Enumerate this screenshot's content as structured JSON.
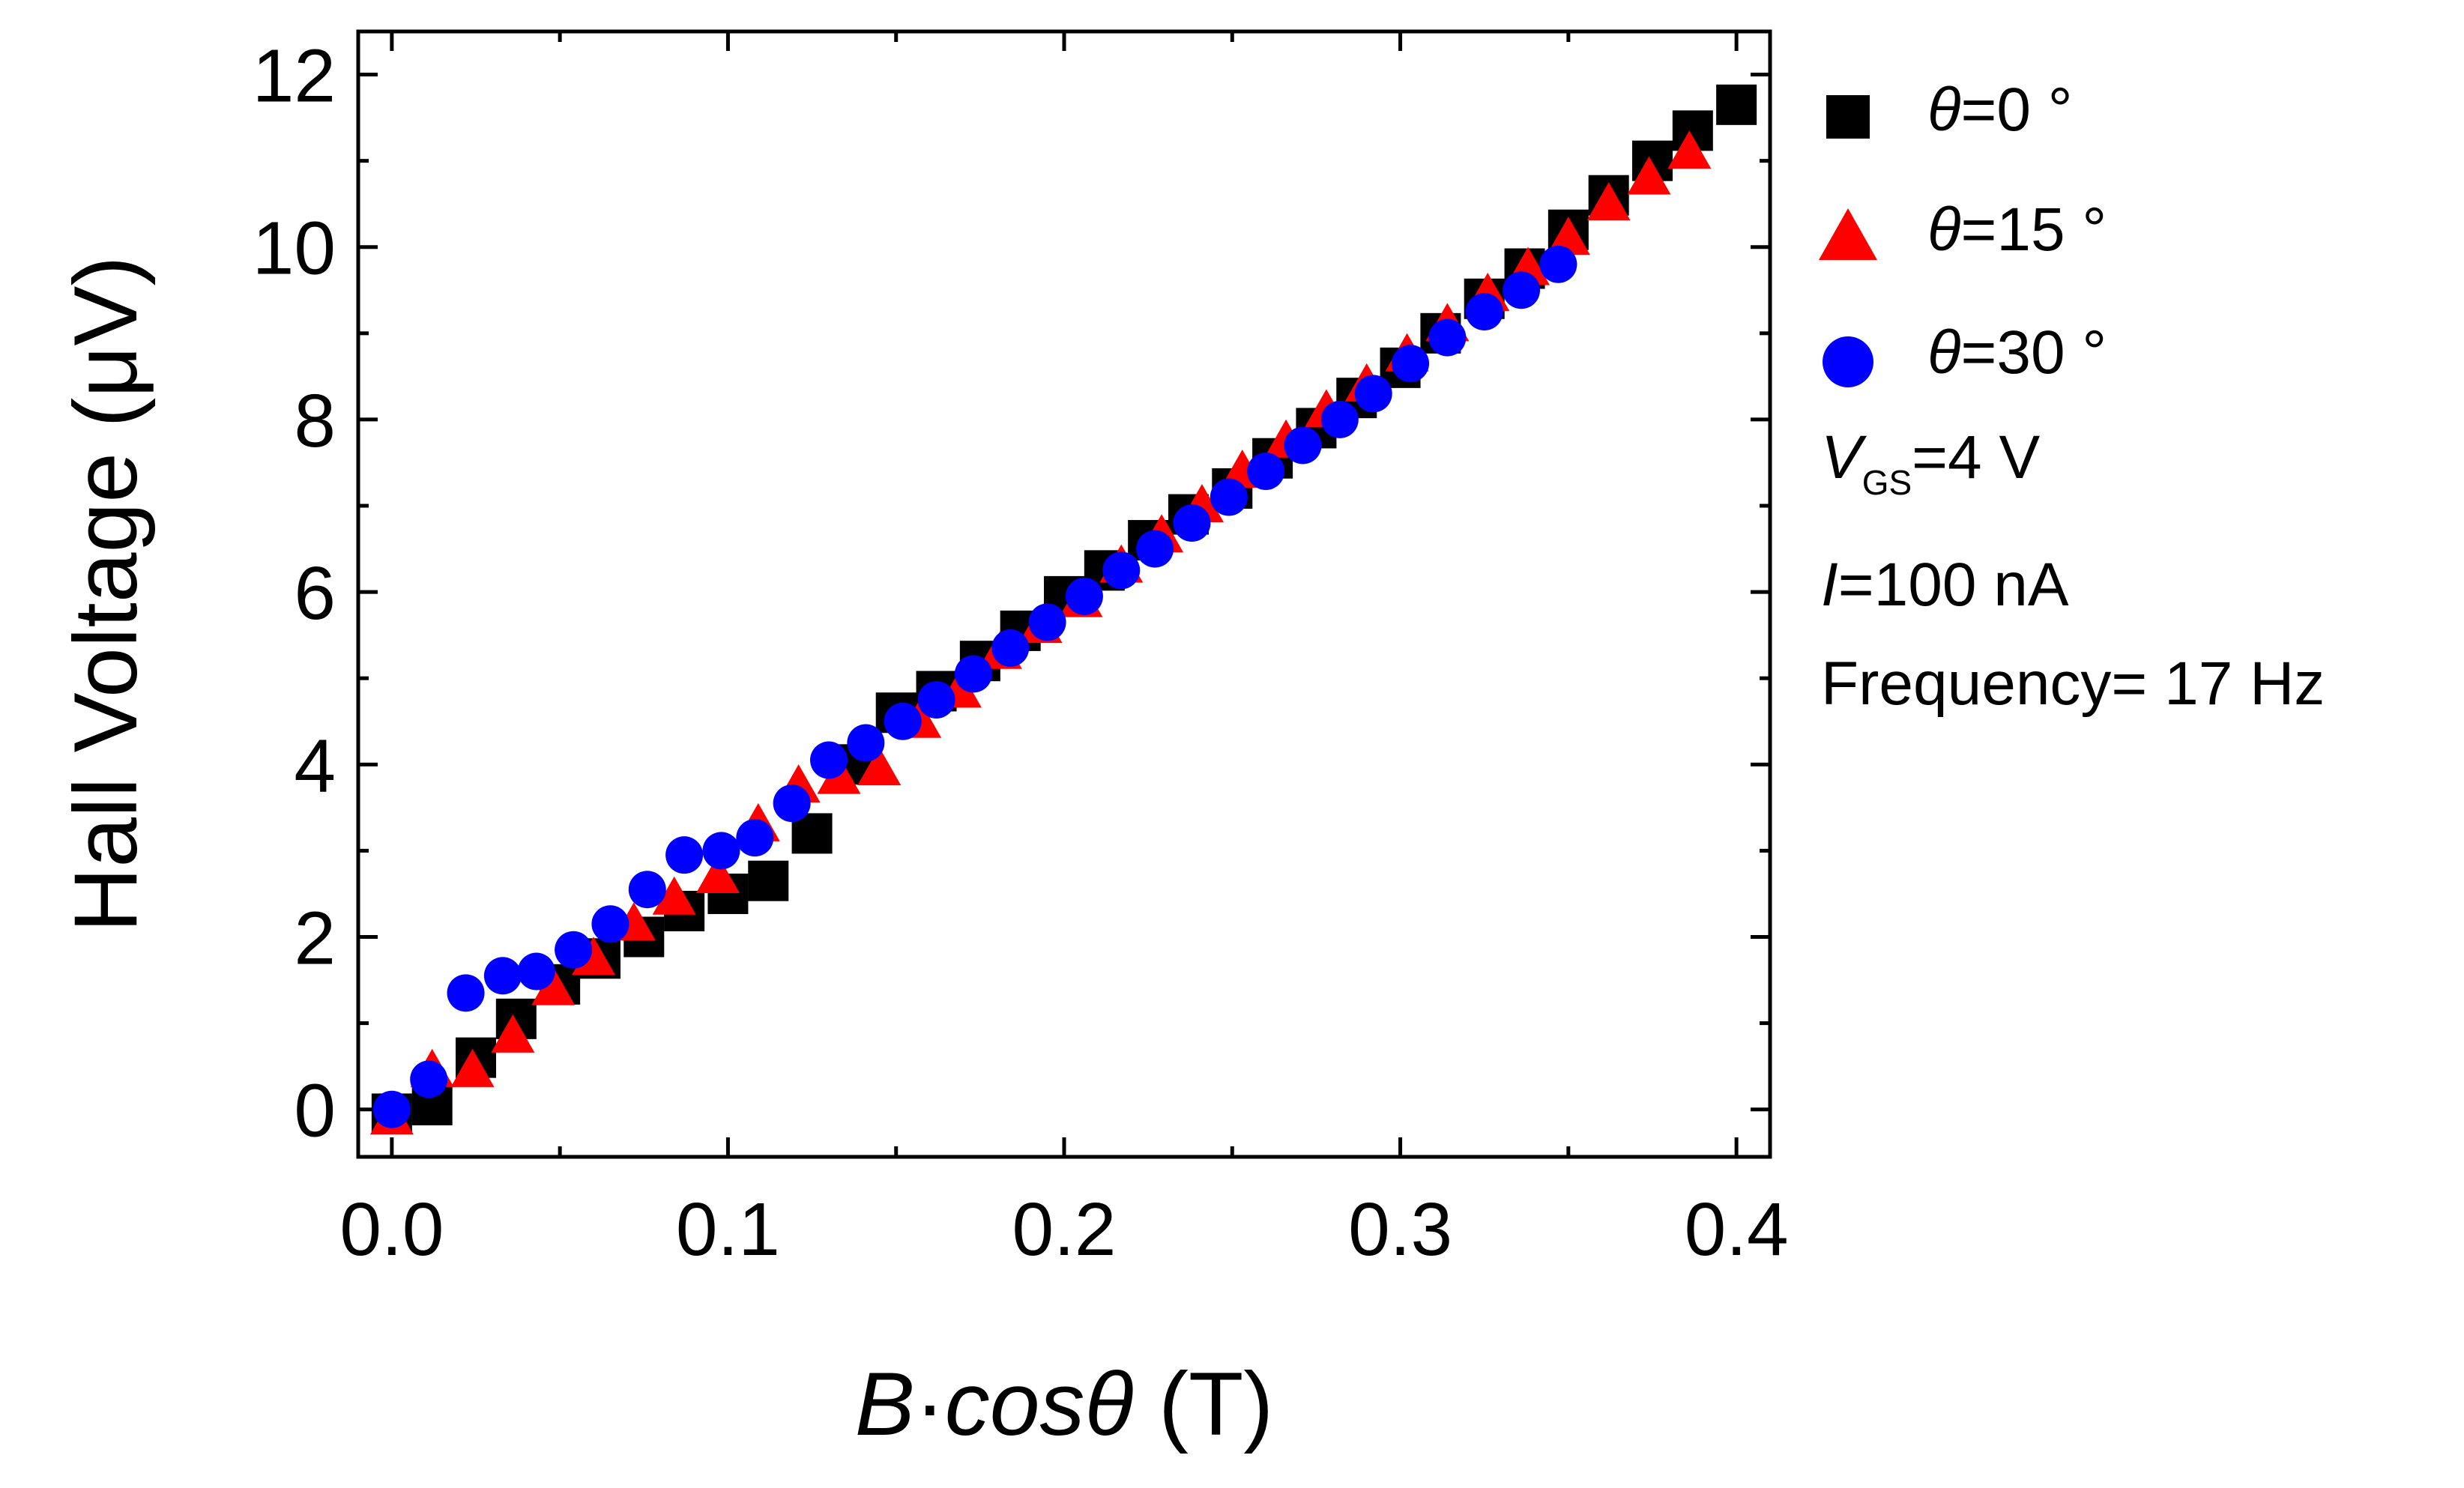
{
  "chart_data": {
    "type": "scatter",
    "xlabel": "B·cosθ (T)",
    "xlabel_parts": {
      "var": "B",
      "dot": "·",
      "func": "cos",
      "theta": "θ",
      "unit": " (T)"
    },
    "ylabel": "Hall Voltage (μV)",
    "xlim": [
      -0.01,
      0.41
    ],
    "ylim": [
      -0.55,
      12.5
    ],
    "xticks": [
      "0.0",
      "0.1",
      "0.2",
      "0.3",
      "0.4"
    ],
    "xtick_values": [
      0.0,
      0.1,
      0.2,
      0.3,
      0.4
    ],
    "yticks": [
      "0",
      "2",
      "4",
      "6",
      "8",
      "10",
      "12"
    ],
    "ytick_values": [
      0,
      2,
      4,
      6,
      8,
      10,
      12
    ],
    "series": [
      {
        "name": "θ=0 °",
        "legend": {
          "theta": "θ",
          "value": "=0 °"
        },
        "marker": "square",
        "color": "#000000",
        "x": [
          0.0,
          0.012,
          0.025,
          0.037,
          0.05,
          0.062,
          0.075,
          0.087,
          0.1,
          0.112,
          0.125,
          0.137,
          0.15,
          0.162,
          0.175,
          0.187,
          0.2,
          0.212,
          0.225,
          0.237,
          0.25,
          0.262,
          0.275,
          0.287,
          0.3,
          0.312,
          0.325,
          0.337,
          0.35,
          0.362,
          0.375,
          0.387,
          0.4
        ],
        "y": [
          -0.05,
          0.05,
          0.6,
          1.05,
          1.45,
          1.75,
          2.0,
          2.3,
          2.5,
          2.65,
          3.2,
          4.0,
          4.6,
          4.85,
          5.2,
          5.55,
          5.95,
          6.25,
          6.6,
          6.9,
          7.2,
          7.55,
          7.9,
          8.25,
          8.6,
          9.0,
          9.4,
          9.75,
          10.2,
          10.6,
          11.0,
          11.35,
          11.65
        ]
      },
      {
        "name": "θ=15 °",
        "legend": {
          "theta": "θ",
          "value": "=15 °"
        },
        "marker": "triangle",
        "color": "#ff0000",
        "x": [
          0.0,
          0.012,
          0.024,
          0.036,
          0.048,
          0.06,
          0.072,
          0.084,
          0.097,
          0.109,
          0.121,
          0.133,
          0.145,
          0.157,
          0.169,
          0.181,
          0.193,
          0.205,
          0.217,
          0.229,
          0.241,
          0.253,
          0.266,
          0.278,
          0.29,
          0.302,
          0.314,
          0.326,
          0.338,
          0.35,
          0.362,
          0.374,
          0.386
        ],
        "y": [
          -0.1,
          0.45,
          0.45,
          0.85,
          1.4,
          1.75,
          2.15,
          2.45,
          2.7,
          3.3,
          3.75,
          3.85,
          3.95,
          4.5,
          4.85,
          5.3,
          5.6,
          5.9,
          6.3,
          6.65,
          7.0,
          7.4,
          7.75,
          8.1,
          8.4,
          8.75,
          9.1,
          9.45,
          9.75,
          10.1,
          10.5,
          10.8,
          11.1
        ]
      },
      {
        "name": "θ=30 °",
        "legend": {
          "theta": "θ",
          "value": "=30 °"
        },
        "marker": "circle",
        "color": "#0000ff",
        "x": [
          0.0,
          0.011,
          0.022,
          0.033,
          0.043,
          0.054,
          0.065,
          0.076,
          0.087,
          0.098,
          0.108,
          0.119,
          0.13,
          0.141,
          0.152,
          0.162,
          0.173,
          0.184,
          0.195,
          0.206,
          0.217,
          0.227,
          0.238,
          0.249,
          0.26,
          0.271,
          0.282,
          0.292,
          0.303,
          0.314,
          0.325,
          0.336,
          0.347
        ],
        "y": [
          0.0,
          0.35,
          1.35,
          1.55,
          1.6,
          1.85,
          2.15,
          2.55,
          2.95,
          3.0,
          3.15,
          3.55,
          4.05,
          4.25,
          4.5,
          4.75,
          5.05,
          5.35,
          5.65,
          5.95,
          6.25,
          6.5,
          6.8,
          7.1,
          7.4,
          7.7,
          8.0,
          8.3,
          8.65,
          8.95,
          9.25,
          9.5,
          9.8
        ]
      }
    ],
    "annotations": {
      "vgs": {
        "var": "V",
        "sub": "GS",
        "value": "=4 V"
      },
      "current": {
        "var": "I",
        "value": "=100 nA"
      },
      "frequency": {
        "text": "Frequency= 17 Hz"
      }
    }
  }
}
